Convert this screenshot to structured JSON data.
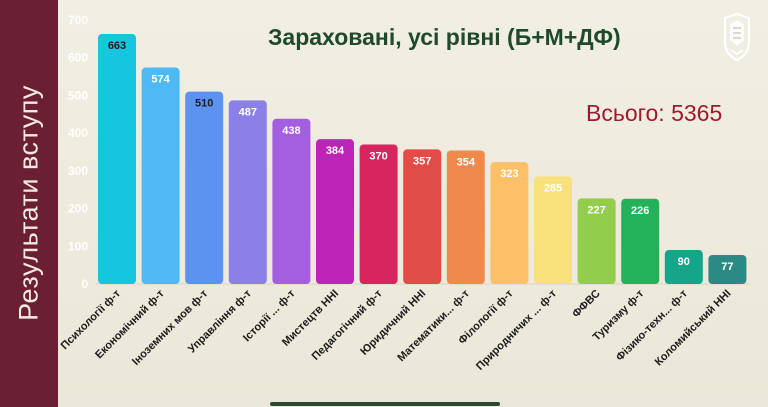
{
  "sidebar": {
    "label": "Результати вступу"
  },
  "header": {
    "title": "Зараховані, усі рівні (Б+М+ДФ)",
    "total": "Всього: 5365"
  },
  "colors": {
    "sidebar": "#6b1f33",
    "title": "#1f4a2a",
    "total": "#a0192e"
  },
  "logo_icon": "university-crest-icon",
  "chart_data": {
    "type": "bar",
    "title": "Зараховані, усі рівні (Б+М+ДФ)",
    "xlabel": "",
    "ylabel": "",
    "ylim": [
      0,
      700
    ],
    "yticks": [
      0,
      100,
      200,
      300,
      400,
      500,
      600,
      700
    ],
    "grid": false,
    "categories": [
      "Психології ф-т",
      "Економічний ф-т",
      "Іноземних мов ф-т",
      "Управління ф-т",
      "Історії ... ф-т",
      "Мистецтв ННІ",
      "Педагогічний ф-т",
      "Юридичний ННІ",
      "Математики... ф-т",
      "Філології ф-т",
      "Природничих ... ф-т",
      "ФФВС",
      "Туризму ф-т",
      "Фізико-техн... ф-т",
      "Коломийський ННІ"
    ],
    "values": [
      663,
      574,
      510,
      487,
      438,
      384,
      370,
      357,
      354,
      323,
      285,
      227,
      226,
      90,
      77
    ],
    "bar_colors": [
      "#16c6de",
      "#4fb9f5",
      "#5c93f0",
      "#8b7fe8",
      "#a45ee0",
      "#be24b8",
      "#d8245f",
      "#e04c46",
      "#f08a4c",
      "#fbc068",
      "#f8e17a",
      "#92ce4c",
      "#23b15a",
      "#17a58a",
      "#2c8a85"
    ]
  }
}
